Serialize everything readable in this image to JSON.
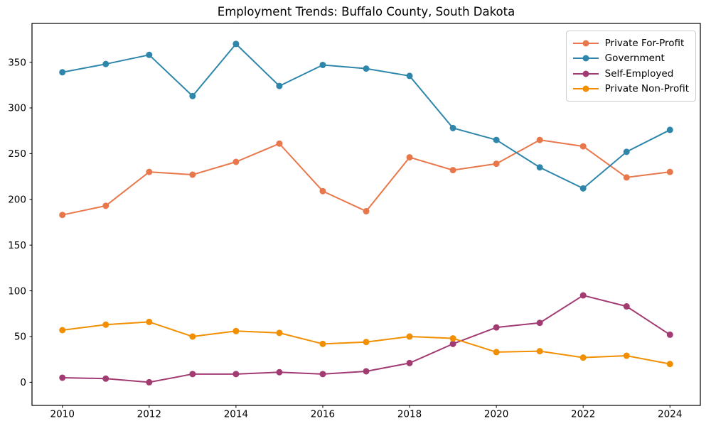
{
  "figure": {
    "background_color": "#ffffff",
    "axes_edge_color": "#000000"
  },
  "chart_data": {
    "type": "line",
    "title": "Employment Trends: Buffalo County, South Dakota",
    "xlabel": "",
    "ylabel": "",
    "x": [
      2010,
      2011,
      2012,
      2013,
      2014,
      2015,
      2016,
      2017,
      2018,
      2019,
      2020,
      2021,
      2022,
      2023,
      2024
    ],
    "series": [
      {
        "name": "Private For-Profit",
        "color": "#E8774B",
        "marker": "circle",
        "values": [
          183,
          193,
          230,
          227,
          241,
          261,
          209,
          187,
          246,
          232,
          239,
          265,
          258,
          224,
          230
        ]
      },
      {
        "name": "Government",
        "color": "#2E86AB",
        "marker": "circle",
        "values": [
          339,
          348,
          358,
          313,
          370,
          324,
          347,
          343,
          335,
          278,
          265,
          235,
          212,
          252,
          276
        ]
      },
      {
        "name": "Self-Employed",
        "color": "#A23B72",
        "marker": "circle",
        "values": [
          5,
          4,
          0,
          9,
          9,
          11,
          9,
          12,
          21,
          42,
          60,
          65,
          95,
          83,
          52
        ]
      },
      {
        "name": "Private Non-Profit",
        "color": "#F18F01",
        "marker": "circle",
        "values": [
          57,
          63,
          66,
          50,
          56,
          54,
          42,
          44,
          50,
          48,
          33,
          34,
          27,
          29,
          20
        ]
      }
    ],
    "xticks": [
      "2010",
      "2012",
      "2014",
      "2016",
      "2018",
      "2020",
      "2022",
      "2024"
    ],
    "xtick_values": [
      2010,
      2012,
      2014,
      2016,
      2018,
      2020,
      2022,
      2024
    ],
    "yticks": [
      "0",
      "50",
      "100",
      "150",
      "200",
      "250",
      "300",
      "350"
    ],
    "ytick_values": [
      0,
      50,
      100,
      150,
      200,
      250,
      300,
      350
    ],
    "xlim": [
      2009.3,
      2024.7
    ],
    "ylim": [
      -25.3,
      392.4
    ],
    "grid": false,
    "legend_position": "upper right",
    "legend_labels": [
      "Private For-Profit",
      "Government",
      "Self-Employed",
      "Private Non-Profit"
    ]
  }
}
